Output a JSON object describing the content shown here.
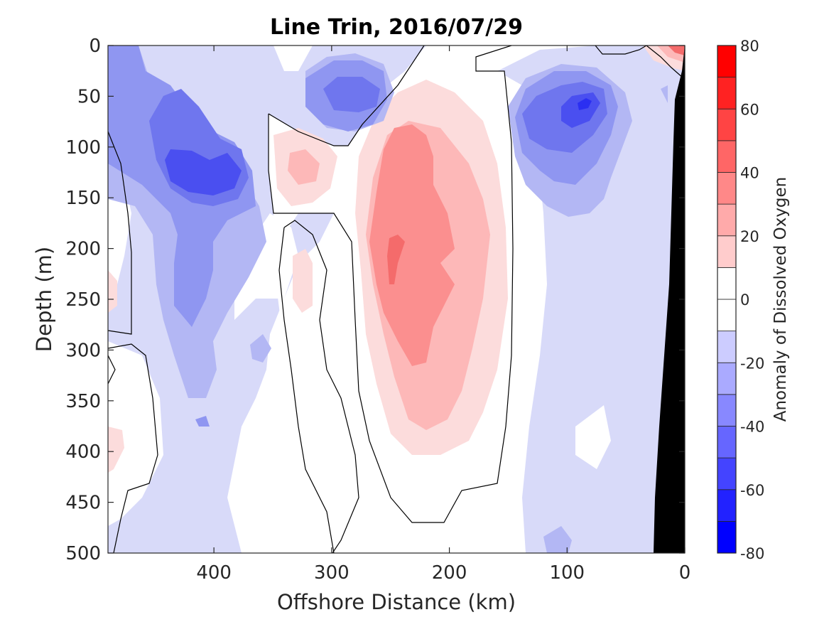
{
  "chart_data": {
    "type": "heatmap",
    "title": "Line Trin, 2016/07/29",
    "xlabel": "Offshore Distance (km)",
    "ylabel": "Depth (m)",
    "xlim": [
      490,
      0
    ],
    "ylim": [
      0,
      500
    ],
    "x_reversed": true,
    "y_reversed": true,
    "x_ticks": [
      400,
      300,
      200,
      100,
      0
    ],
    "y_ticks": [
      0,
      50,
      100,
      150,
      200,
      250,
      300,
      350,
      400,
      450,
      500
    ],
    "colorbar": {
      "label": "Anomaly of Dissolved Oxygen",
      "range": [
        -80,
        80
      ],
      "levels": [
        -80,
        -70,
        -60,
        -50,
        -40,
        -30,
        -20,
        -10,
        0,
        10,
        20,
        30,
        40,
        50,
        60,
        70,
        80
      ],
      "tick_labels": [
        -80,
        -60,
        -40,
        -20,
        0,
        20,
        40,
        60,
        80
      ]
    },
    "zero_contour": true,
    "bathymetry_color": "#000000",
    "features": [
      {
        "sign": "negative",
        "x": 420,
        "y": 125,
        "peak": -55
      },
      {
        "sign": "negative",
        "x": 285,
        "y": 45,
        "peak": -40
      },
      {
        "sign": "negative",
        "x": 90,
        "y": 60,
        "peak": -65
      },
      {
        "sign": "positive",
        "x": 235,
        "y": 215,
        "peak": 45
      },
      {
        "sign": "positive",
        "x": 330,
        "y": 120,
        "peak": 22
      },
      {
        "sign": "positive",
        "x": 5,
        "y": 5,
        "peak": 70
      }
    ]
  }
}
